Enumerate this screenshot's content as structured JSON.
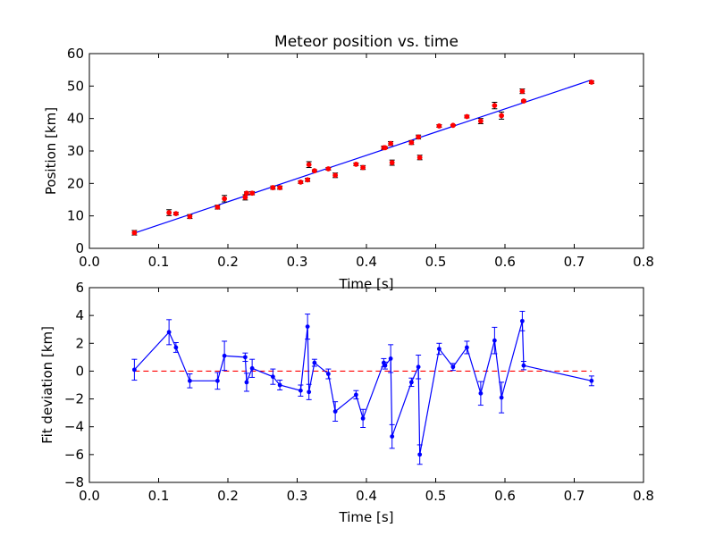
{
  "chart_data": [
    {
      "type": "scatter",
      "title": "Meteor position vs. time",
      "xlabel": "Time [s]",
      "ylabel": "Position [km]",
      "xlim": [
        0.0,
        0.8
      ],
      "ylim": [
        0,
        60
      ],
      "xticks": [
        "0.0",
        "0.1",
        "0.2",
        "0.3",
        "0.4",
        "0.5",
        "0.6",
        "0.7",
        "0.8"
      ],
      "yticks": [
        "0",
        "10",
        "20",
        "30",
        "40",
        "50",
        "60"
      ],
      "grid": false,
      "colors": {
        "points": "#ff0000",
        "fit": "#0000ff"
      },
      "series": [
        {
          "type": "scatter-errorbar",
          "x": [
            0.065,
            0.115,
            0.125,
            0.145,
            0.185,
            0.195,
            0.225,
            0.227,
            0.235,
            0.265,
            0.275,
            0.305,
            0.315,
            0.317,
            0.325,
            0.345,
            0.355,
            0.385,
            0.395,
            0.425,
            0.427,
            0.435,
            0.437,
            0.465,
            0.475,
            0.477,
            0.505,
            0.525,
            0.545,
            0.565,
            0.585,
            0.595,
            0.625,
            0.627,
            0.725
          ],
          "y": [
            4.8,
            11.0,
            10.7,
            9.8,
            12.7,
            15.3,
            15.7,
            17.0,
            17.0,
            18.7,
            18.7,
            20.4,
            21.1,
            25.8,
            23.9,
            24.5,
            22.5,
            25.9,
            24.9,
            31.0,
            31.0,
            32.3,
            26.4,
            32.6,
            34.3,
            28.0,
            37.7,
            37.9,
            40.6,
            39.2,
            44.0,
            40.9,
            48.4,
            45.4,
            51.2
          ],
          "yerr": [
            0.7,
            0.9,
            0.4,
            0.6,
            0.6,
            1.0,
            0.8,
            0.4,
            0.5,
            0.5,
            0.5,
            0.4,
            0.5,
            0.9,
            0.3,
            0.4,
            0.7,
            0.4,
            0.6,
            0.5,
            0.3,
            0.6,
            0.8,
            0.6,
            0.6,
            0.7,
            0.4,
            0.2,
            0.4,
            0.8,
            1.0,
            1.1,
            0.7,
            0.3,
            0.4
          ]
        },
        {
          "type": "line",
          "x": [
            0.065,
            0.725
          ],
          "y": [
            4.7,
            51.9
          ]
        }
      ]
    },
    {
      "type": "line",
      "title": "",
      "xlabel": "Time [s]",
      "ylabel": "Fit deviation [km]",
      "xlim": [
        0.0,
        0.8
      ],
      "ylim": [
        -8,
        6
      ],
      "xticks": [
        "0.0",
        "0.1",
        "0.2",
        "0.3",
        "0.4",
        "0.5",
        "0.6",
        "0.7",
        "0.8"
      ],
      "yticks": [
        "−8",
        "−6",
        "−4",
        "−2",
        "0",
        "2",
        "4",
        "6"
      ],
      "grid": false,
      "colors": {
        "series": "#0000ff",
        "reference": "#ff0000"
      },
      "series": [
        {
          "type": "line-errorbar",
          "x": [
            0.065,
            0.115,
            0.125,
            0.145,
            0.185,
            0.195,
            0.225,
            0.227,
            0.235,
            0.265,
            0.275,
            0.305,
            0.315,
            0.317,
            0.325,
            0.345,
            0.355,
            0.385,
            0.395,
            0.425,
            0.427,
            0.435,
            0.437,
            0.465,
            0.475,
            0.477,
            0.505,
            0.525,
            0.545,
            0.565,
            0.585,
            0.595,
            0.625,
            0.627,
            0.725
          ],
          "y": [
            0.1,
            2.8,
            1.7,
            -0.7,
            -0.7,
            1.1,
            1.0,
            -0.8,
            0.2,
            -0.4,
            -1.0,
            -1.4,
            3.2,
            -1.5,
            0.6,
            -0.2,
            -2.9,
            -1.7,
            -3.4,
            0.6,
            0.4,
            0.9,
            -4.7,
            -0.8,
            0.3,
            -6.0,
            1.6,
            0.3,
            1.7,
            -1.6,
            2.2,
            -1.9,
            3.6,
            0.4,
            -0.7
          ],
          "yerr": [
            0.75,
            0.9,
            0.35,
            0.5,
            0.6,
            1.05,
            0.3,
            0.65,
            0.65,
            0.55,
            0.35,
            0.4,
            0.9,
            0.55,
            0.25,
            0.35,
            0.7,
            0.3,
            0.65,
            0.3,
            0.25,
            1.0,
            0.85,
            0.3,
            0.85,
            0.7,
            0.4,
            0.25,
            0.45,
            0.85,
            0.95,
            1.1,
            0.7,
            0.3,
            0.35
          ]
        },
        {
          "type": "reference-line",
          "style": "dashed",
          "x": [
            0.065,
            0.725
          ],
          "y": [
            0,
            0
          ]
        }
      ]
    }
  ]
}
